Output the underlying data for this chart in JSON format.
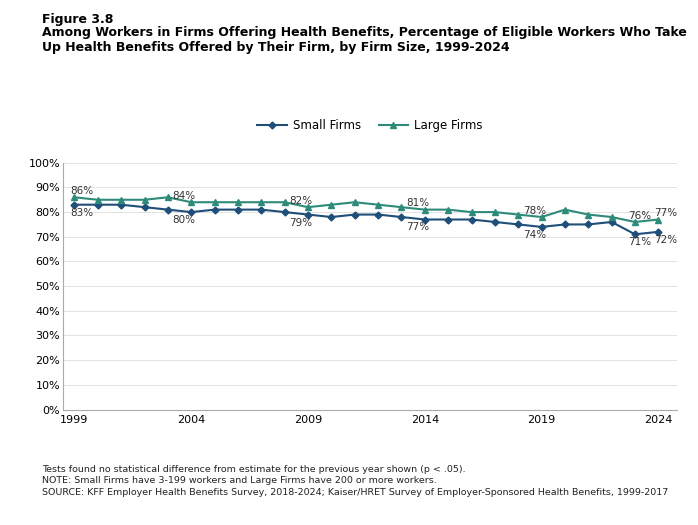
{
  "small_firms_years": [
    1999,
    2000,
    2001,
    2002,
    2003,
    2004,
    2005,
    2006,
    2007,
    2008,
    2009,
    2010,
    2011,
    2012,
    2013,
    2014,
    2015,
    2016,
    2017,
    2018,
    2019,
    2020,
    2021,
    2022,
    2023,
    2024
  ],
  "small_firms_values": [
    83,
    83,
    83,
    82,
    81,
    80,
    81,
    81,
    81,
    80,
    79,
    78,
    79,
    79,
    78,
    77,
    77,
    77,
    76,
    75,
    74,
    75,
    75,
    76,
    71,
    72
  ],
  "large_firms_years": [
    1999,
    2000,
    2001,
    2002,
    2003,
    2004,
    2005,
    2006,
    2007,
    2008,
    2009,
    2010,
    2011,
    2012,
    2013,
    2014,
    2015,
    2016,
    2017,
    2018,
    2019,
    2020,
    2021,
    2022,
    2023,
    2024
  ],
  "large_firms_values": [
    86,
    85,
    85,
    85,
    86,
    84,
    84,
    84,
    84,
    84,
    82,
    83,
    84,
    83,
    82,
    81,
    81,
    80,
    80,
    79,
    78,
    81,
    79,
    78,
    76,
    77
  ],
  "small_label_years": [
    1999,
    2004,
    2009,
    2014,
    2019,
    2023,
    2024
  ],
  "small_label_values": [
    83,
    80,
    79,
    77,
    74,
    71,
    72
  ],
  "large_label_years": [
    1999,
    2004,
    2009,
    2014,
    2019,
    2023,
    2024
  ],
  "large_label_values": [
    86,
    84,
    82,
    81,
    78,
    76,
    77
  ],
  "small_color": "#1f4e79",
  "large_color": "#2e8b7a",
  "title_line1": "Figure 3.8",
  "title_line2": "Among Workers in Firms Offering Health Benefits, Percentage of Eligible Workers Who Take",
  "title_line3": "Up Health Benefits Offered by Their Firm, by Firm Size, 1999-2024",
  "legend_small": "Small Firms",
  "legend_large": "Large Firms",
  "footnote1": "Tests found no statistical difference from estimate for the previous year shown (p < .05).",
  "footnote2": "NOTE: Small Firms have 3-199 workers and Large Firms have 200 or more workers.",
  "footnote3": "SOURCE: KFF Employer Health Benefits Survey, 2018-2024; Kaiser/HRET Survey of Employer-Sponsored Health Benefits, 1999-2017",
  "ylim": [
    0,
    100
  ],
  "yticks": [
    0,
    10,
    20,
    30,
    40,
    50,
    60,
    70,
    80,
    90,
    100
  ],
  "xticks": [
    1999,
    2004,
    2009,
    2014,
    2019,
    2024
  ]
}
